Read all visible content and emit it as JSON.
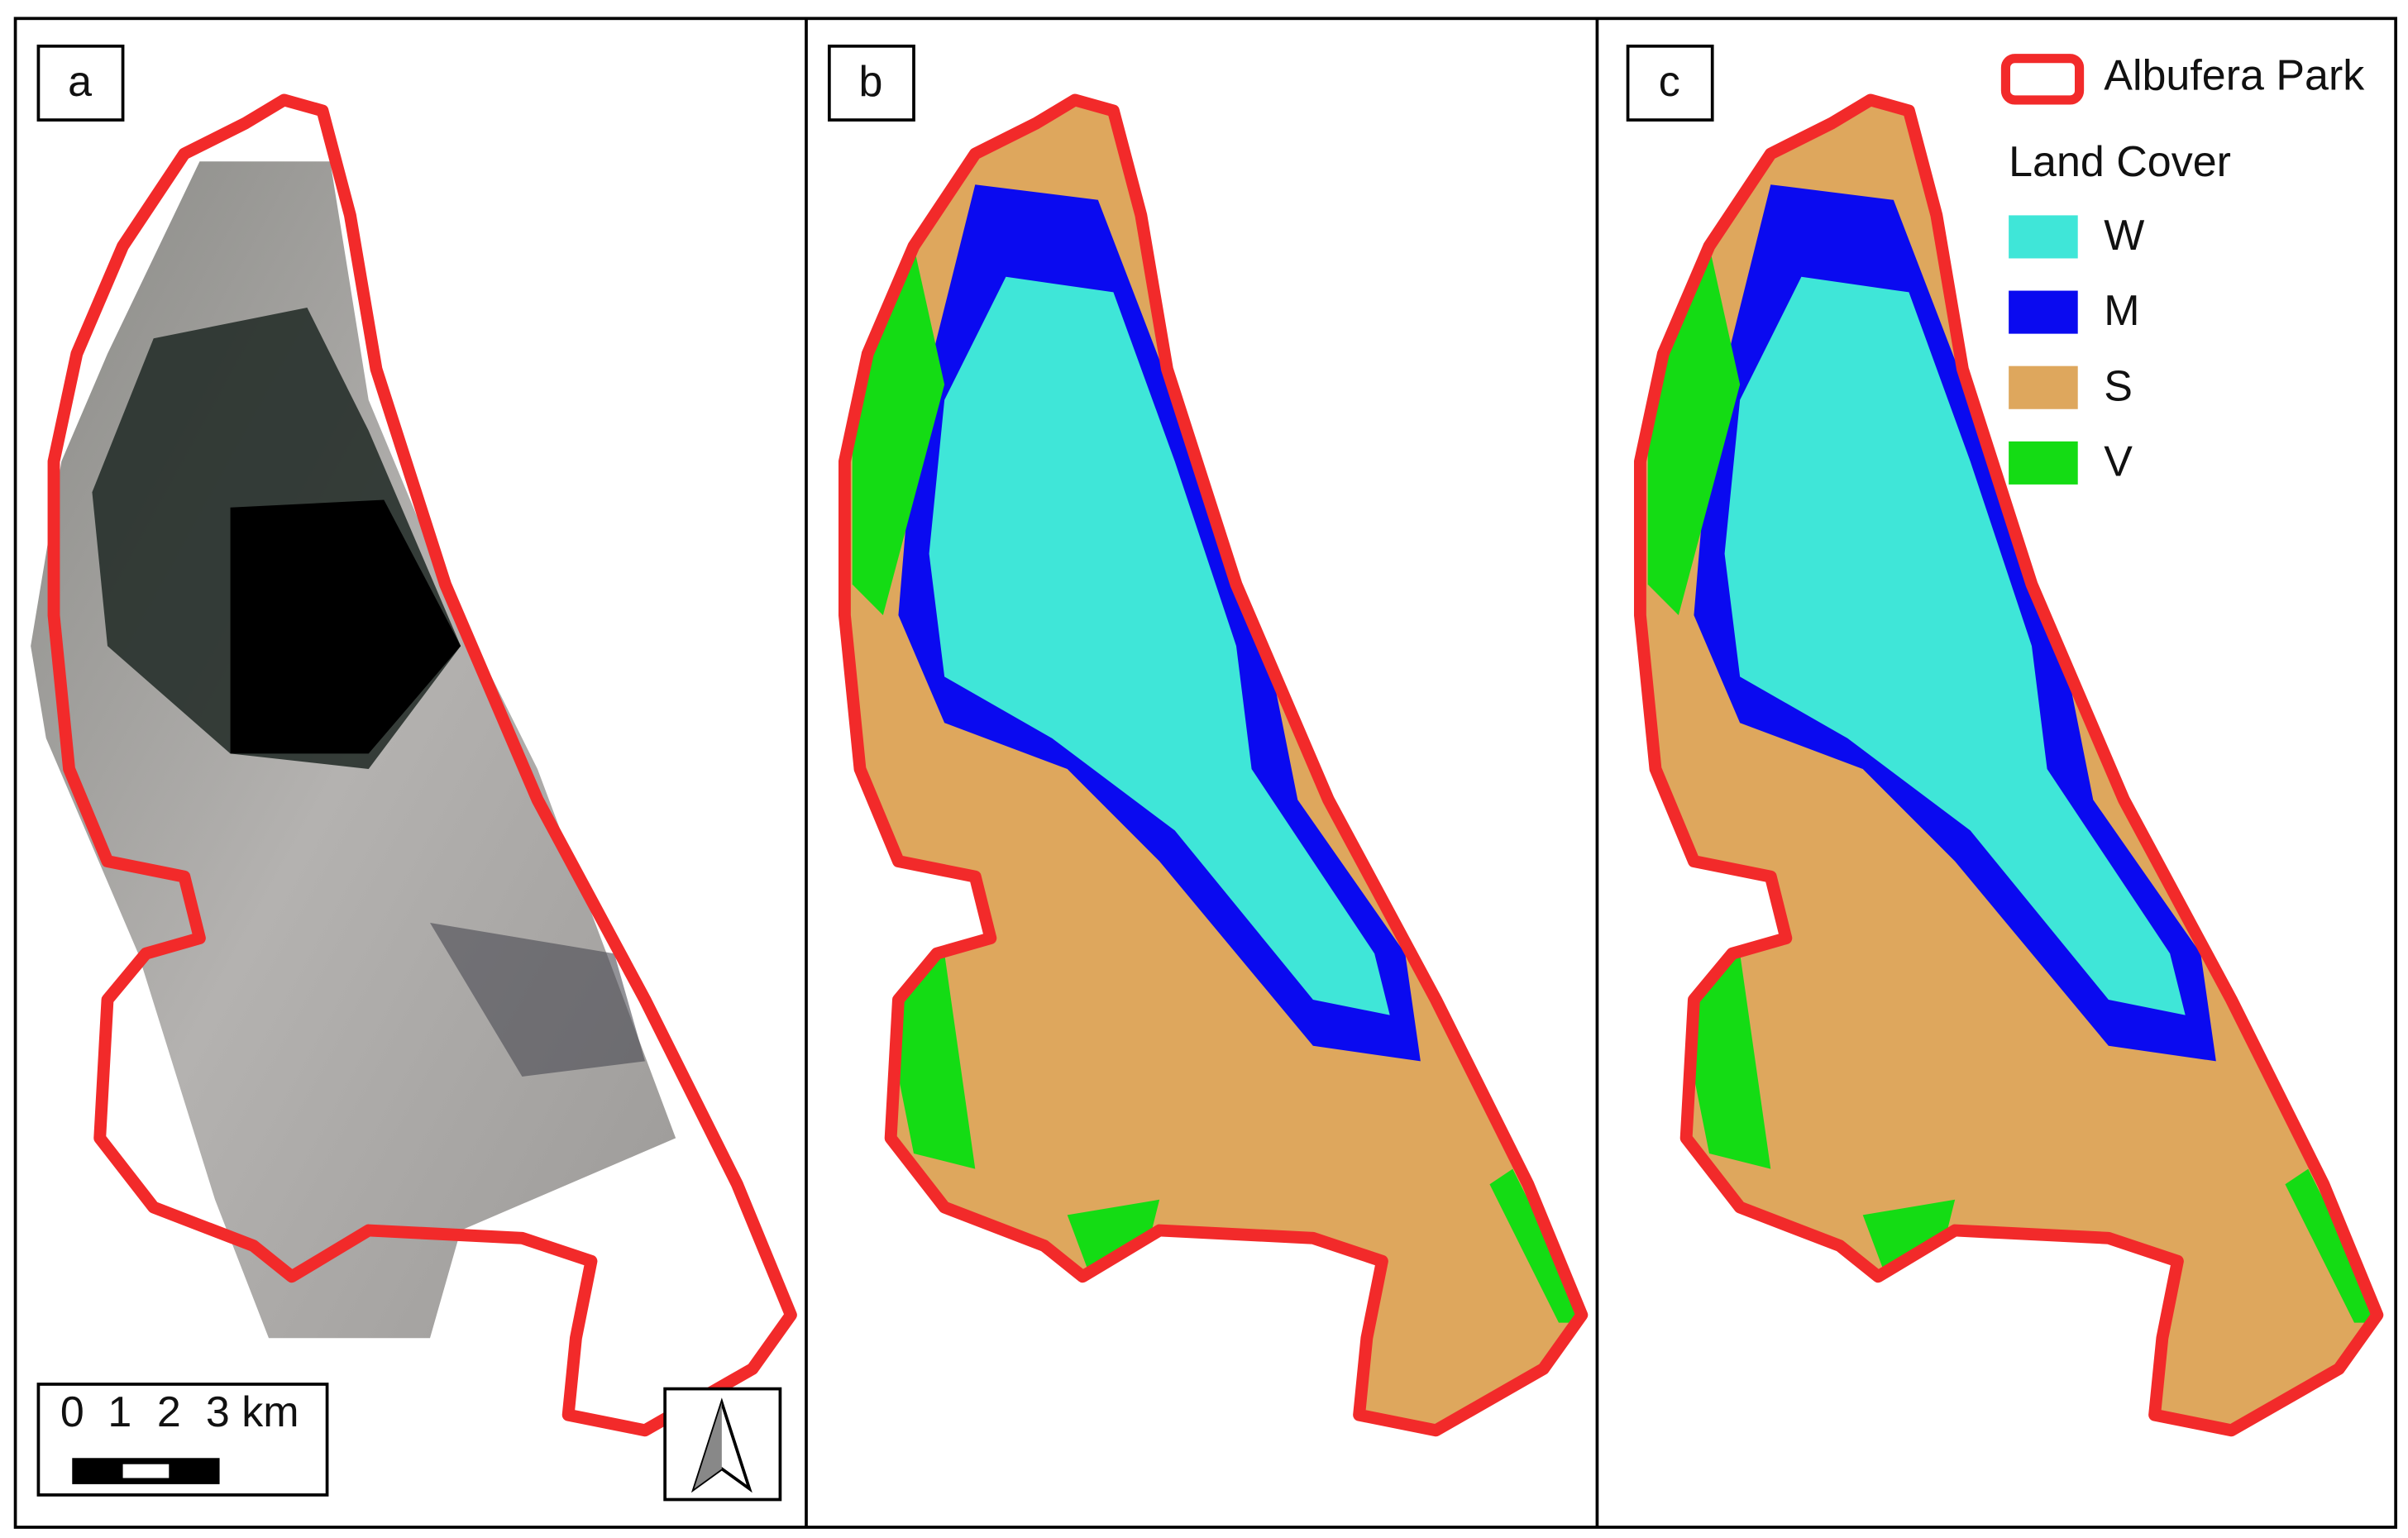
{
  "panels": [
    {
      "label": "a"
    },
    {
      "label": "b"
    },
    {
      "label": "c"
    }
  ],
  "legend": {
    "boundary": {
      "label": "Albufera Park",
      "color": "#f22a2a"
    },
    "title": "Land Cover",
    "items": [
      {
        "label": "W",
        "color": "#3fe6d8"
      },
      {
        "label": "M",
        "color": "#0a0af0"
      },
      {
        "label": "S",
        "color": "#dea75d"
      },
      {
        "label": "V",
        "color": "#14dc14"
      }
    ]
  },
  "scale_bar": {
    "labels": [
      "0",
      "1",
      "2",
      "3 km"
    ]
  }
}
